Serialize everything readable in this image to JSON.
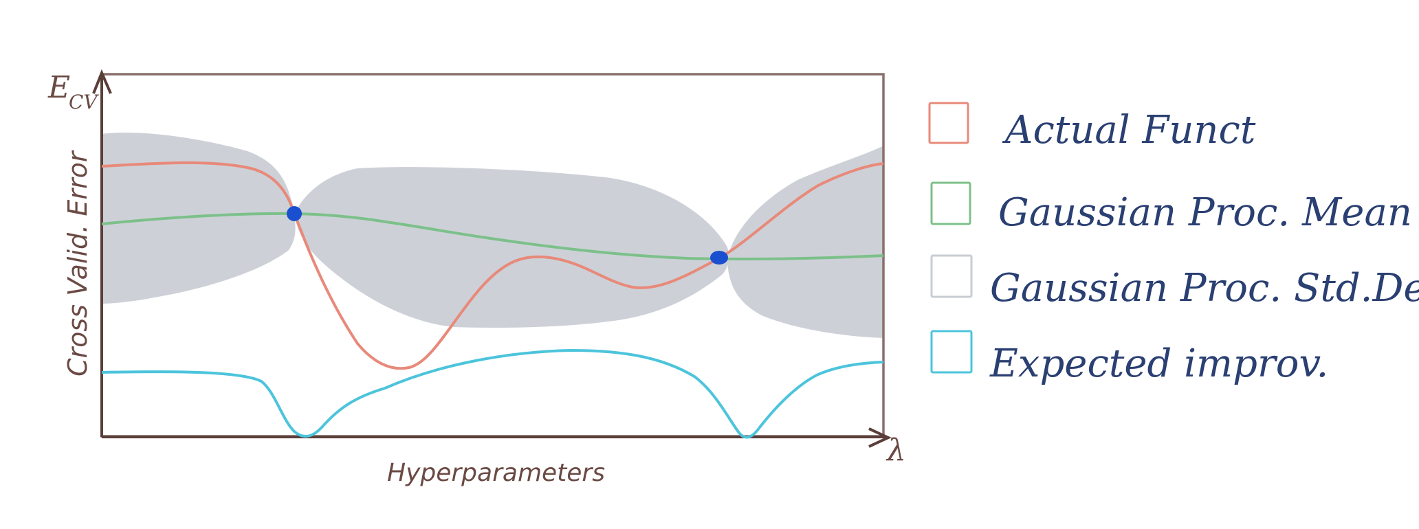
{
  "axes": {
    "y_symbol": "E",
    "y_symbol_sub": "CV",
    "y_label": "Cross Valid. Error",
    "x_label": "Hyperparameters",
    "x_symbol": "λ"
  },
  "legend": [
    {
      "label": "Actual Funct",
      "color": "#e8897a"
    },
    {
      "label": "Gaussian Proc. Mean",
      "color": "#7cc08a"
    },
    {
      "label": "Gaussian Proc. Std.Dev.",
      "color": "#c8ccd3"
    },
    {
      "label": "Expected improv.",
      "color": "#4cc4dc"
    }
  ],
  "colors": {
    "frame": "#8a706c",
    "axis": "#5a3e3a",
    "band": "#cdd1d7",
    "actual": "#e8897a",
    "mean": "#7cc08a",
    "ei": "#4cc4dc",
    "sample": "#1a4fd0"
  },
  "samples": {
    "count": 2
  }
}
